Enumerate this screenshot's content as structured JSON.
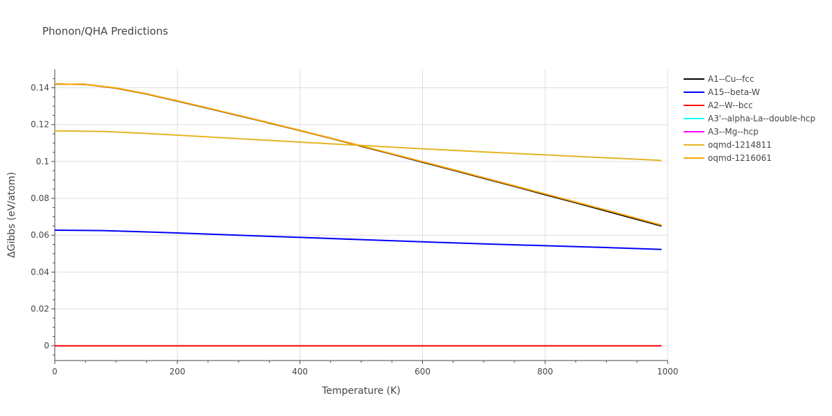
{
  "chart_data": {
    "type": "line",
    "title": "Phonon/QHA Predictions",
    "xlabel": "Temperature (K)",
    "ylabel": "ΔGibbs (eV/atom)",
    "xlim": [
      0,
      1000
    ],
    "ylim": [
      -0.008,
      0.15
    ],
    "x_ticks": [
      0,
      200,
      400,
      600,
      800,
      1000
    ],
    "y_ticks": [
      0,
      0.02,
      0.04,
      0.06,
      0.08,
      0.1,
      0.12,
      0.14
    ],
    "x_tick_labels": [
      "0",
      "200",
      "400",
      "600",
      "800",
      "1000"
    ],
    "y_tick_labels": [
      "0",
      "0.02",
      "0.04",
      "0.06",
      "0.08",
      "0.1",
      "0.12",
      "0.14"
    ],
    "grid": true,
    "legend_position": "top-right outside",
    "series": [
      {
        "name": "A1--Cu--fcc",
        "color": "#000000",
        "x": [
          0,
          50,
          100,
          150,
          200,
          250,
          300,
          350,
          400,
          450,
          500,
          550,
          600,
          650,
          700,
          750,
          800,
          850,
          900,
          950,
          990
        ],
        "y": [
          0.142,
          0.1418,
          0.1398,
          0.1366,
          0.1328,
          0.1289,
          0.1249,
          0.1209,
          0.1168,
          0.1126,
          0.1083,
          0.104,
          0.0996,
          0.0953,
          0.0909,
          0.0865,
          0.082,
          0.0776,
          0.0731,
          0.0686,
          0.065
        ]
      },
      {
        "name": "A15--beta-W",
        "color": "#0000ff",
        "x": [
          0,
          80,
          150,
          200,
          250,
          300,
          400,
          500,
          600,
          700,
          800,
          900,
          990
        ],
        "y": [
          0.0627,
          0.0625,
          0.0618,
          0.0612,
          0.0606,
          0.06,
          0.0588,
          0.0576,
          0.0564,
          0.0553,
          0.0543,
          0.0533,
          0.0523
        ]
      },
      {
        "name": "A2--W--bcc",
        "color": "#ff0000",
        "x": [
          0,
          990
        ],
        "y": [
          0,
          0
        ]
      },
      {
        "name": "A3'--alpha-La--double-hcp",
        "color": "#00ffff",
        "x": [],
        "y": []
      },
      {
        "name": "A3--Mg--hcp",
        "color": "#ff00ff",
        "x": [],
        "y": []
      },
      {
        "name": "oqmd-1214811",
        "color": "#e6b422",
        "x": [
          0,
          80,
          150,
          200,
          300,
          400,
          500,
          600,
          700,
          800,
          900,
          990
        ],
        "y": [
          0.1166,
          0.1163,
          0.1152,
          0.1143,
          0.1124,
          0.1105,
          0.1087,
          0.1069,
          0.1052,
          0.1036,
          0.102,
          0.1006
        ]
      },
      {
        "name": "oqmd-1216061",
        "color": "#ffa500",
        "x": [
          0,
          50,
          100,
          150,
          200,
          250,
          300,
          350,
          400,
          450,
          500,
          550,
          600,
          650,
          700,
          750,
          800,
          850,
          900,
          950,
          990
        ],
        "y": [
          0.142,
          0.1418,
          0.1399,
          0.1367,
          0.1329,
          0.129,
          0.125,
          0.121,
          0.1169,
          0.1127,
          0.1085,
          0.1042,
          0.0999,
          0.0956,
          0.0912,
          0.0868,
          0.0824,
          0.078,
          0.0736,
          0.0691,
          0.0655
        ]
      }
    ]
  }
}
